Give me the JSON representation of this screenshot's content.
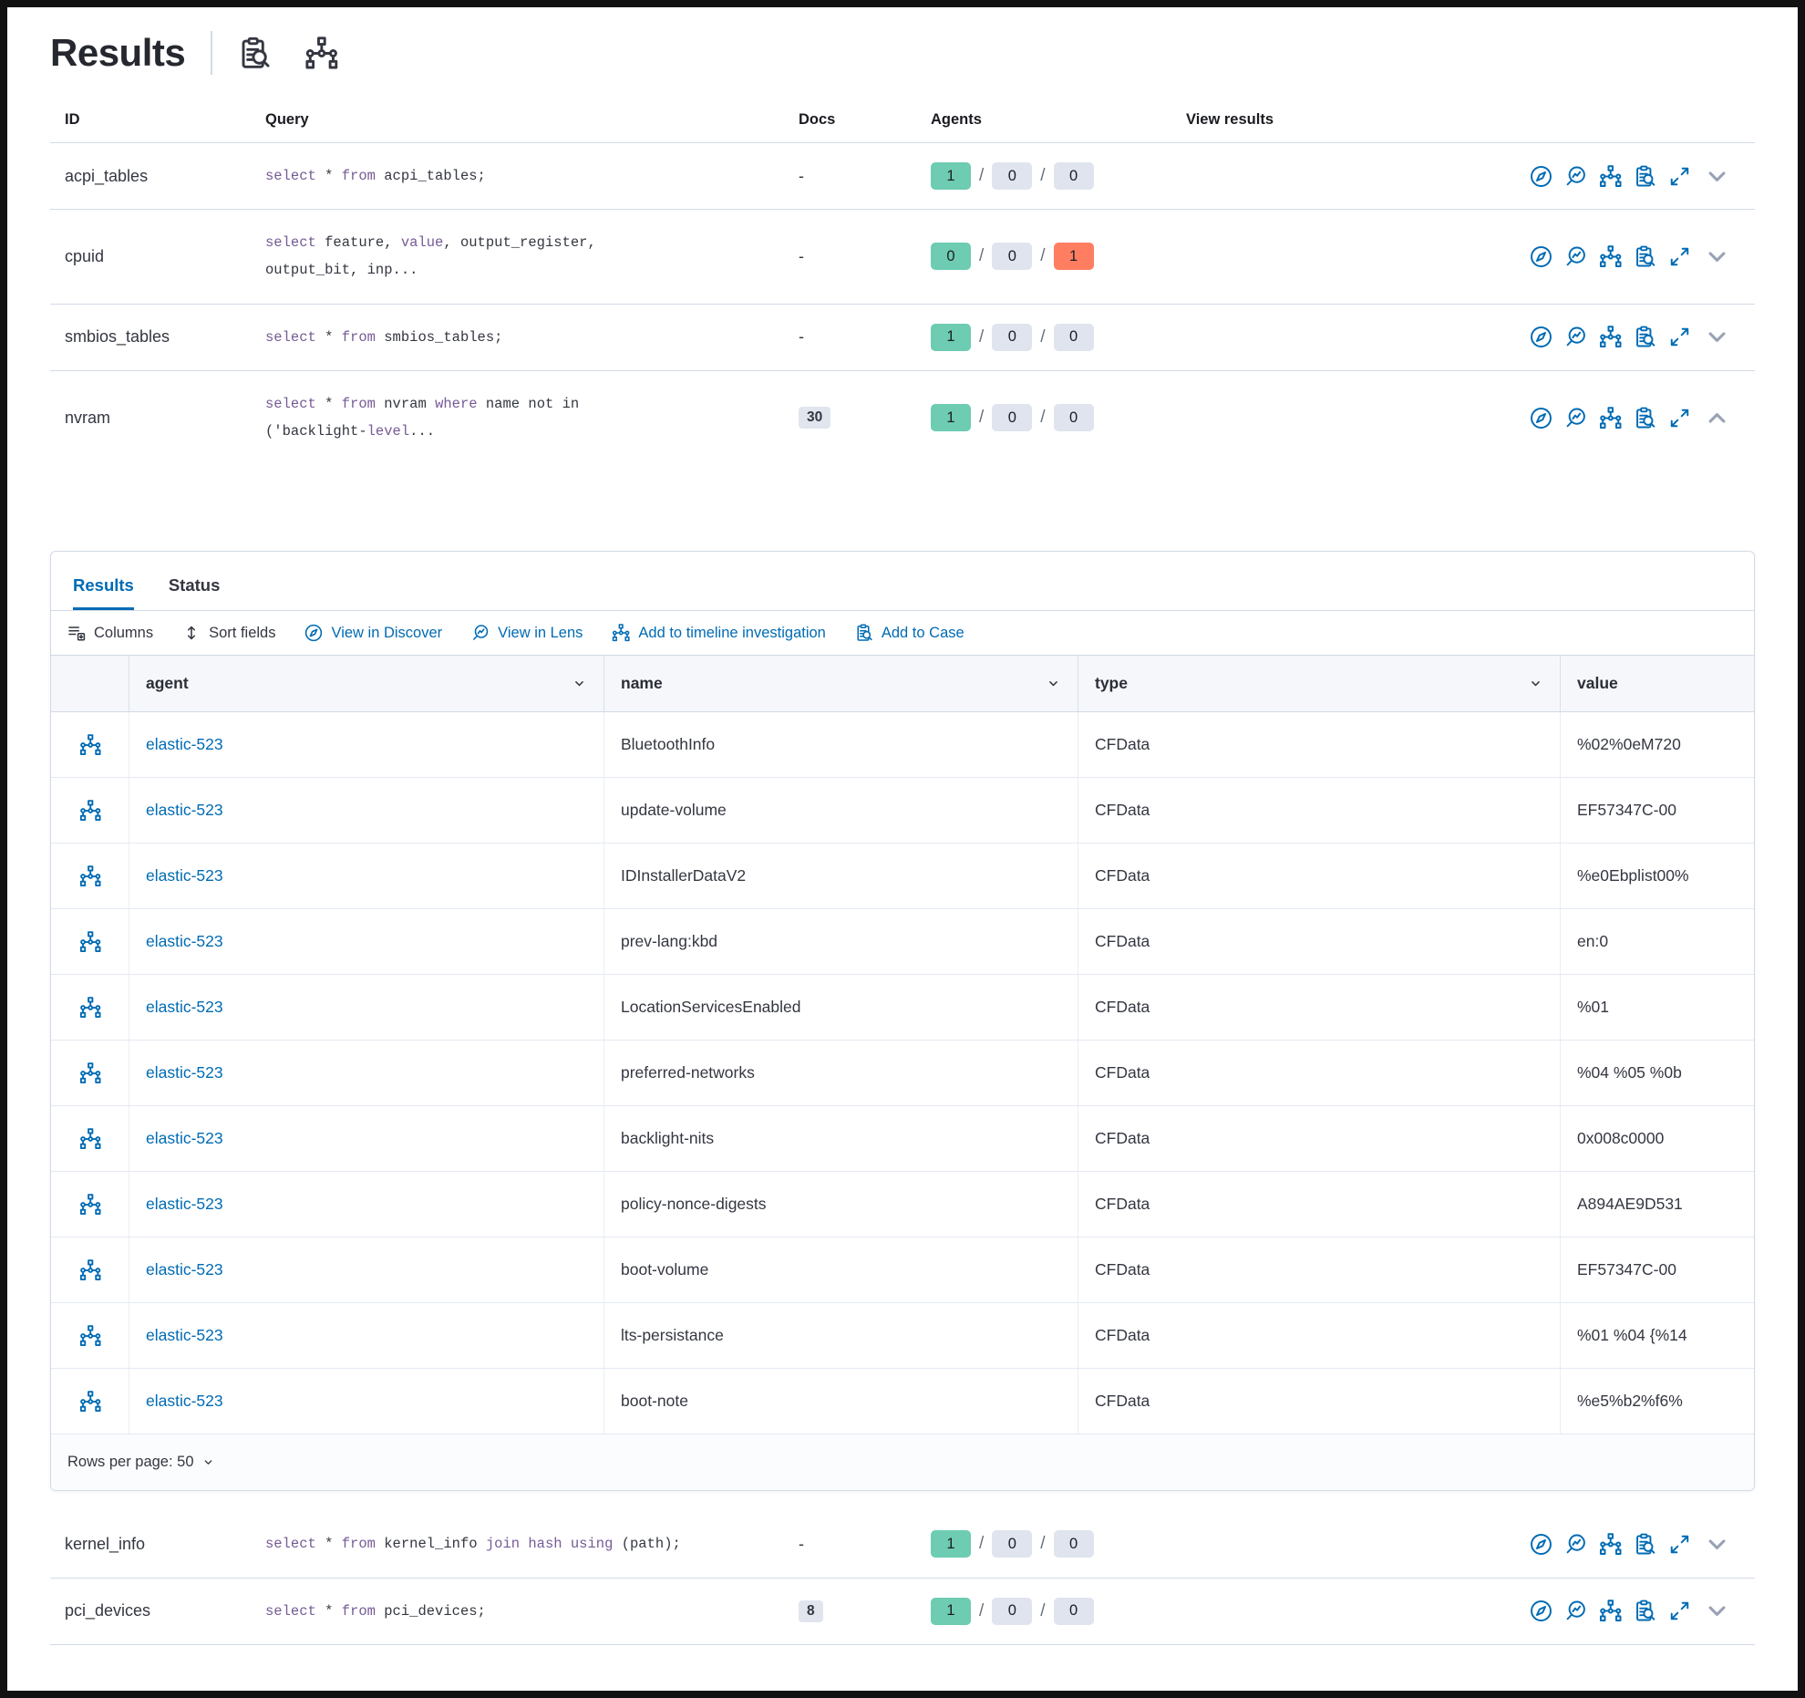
{
  "colors": {
    "accent": "#006bb4",
    "sql_keyword": "#765b96",
    "success_badge": "#6dccb1",
    "danger_badge": "#ff7e62",
    "neutral_badge": "#e0e5ee",
    "border": "#d3dae6",
    "text": "#343741"
  },
  "page": {
    "title": "Results",
    "title_icons": [
      "inspect-icon",
      "timeline-icon"
    ]
  },
  "queries_table": {
    "columns": [
      "ID",
      "Query",
      "Docs",
      "Agents",
      "View results"
    ],
    "view_results_icons": [
      "discover-icon",
      "lens-icon",
      "timeline-icon",
      "case-icon",
      "expand-icon",
      "chevron-icon"
    ],
    "rows_top": [
      {
        "id": "acpi_tables",
        "docs": "-",
        "agents": [
          "1",
          "0",
          "0"
        ],
        "expanded": false,
        "query_lines": [
          [
            [
              "select",
              1
            ],
            [
              " * ",
              0
            ],
            [
              "from",
              1
            ],
            [
              " acpi_tables;",
              0
            ]
          ]
        ]
      },
      {
        "id": "cpuid",
        "docs": "-",
        "agents": [
          "0",
          "0",
          "1"
        ],
        "expanded": false,
        "query_lines": [
          [
            [
              "select",
              1
            ],
            [
              " feature, ",
              0
            ],
            [
              "value",
              1
            ],
            [
              ", output_register,",
              0
            ]
          ],
          [
            [
              "output_bit, inp...",
              0
            ]
          ]
        ]
      },
      {
        "id": "smbios_tables",
        "docs": "-",
        "agents": [
          "1",
          "0",
          "0"
        ],
        "expanded": false,
        "query_lines": [
          [
            [
              "select",
              1
            ],
            [
              " * ",
              0
            ],
            [
              "from",
              1
            ],
            [
              " smbios_tables;",
              0
            ]
          ]
        ]
      },
      {
        "id": "nvram",
        "docs": "30",
        "agents": [
          "1",
          "0",
          "0"
        ],
        "expanded": true,
        "query_lines": [
          [
            [
              "select",
              1
            ],
            [
              " * ",
              0
            ],
            [
              "from",
              1
            ],
            [
              " nvram ",
              0
            ],
            [
              "where",
              1
            ],
            [
              " name not in",
              0
            ]
          ],
          [
            [
              "('backlight-",
              0
            ],
            [
              "level",
              1
            ],
            [
              "...",
              0
            ]
          ]
        ]
      }
    ],
    "rows_bottom": [
      {
        "id": "kernel_info",
        "docs": "-",
        "agents": [
          "1",
          "0",
          "0"
        ],
        "expanded": false,
        "query_lines": [
          [
            [
              "select",
              1
            ],
            [
              " * ",
              0
            ],
            [
              "from",
              1
            ],
            [
              " kernel_info ",
              0
            ],
            [
              "join hash using",
              1
            ],
            [
              " (path);",
              0
            ]
          ]
        ]
      },
      {
        "id": "pci_devices",
        "docs": "8",
        "agents": [
          "1",
          "0",
          "0"
        ],
        "expanded": false,
        "query_lines": [
          [
            [
              "select",
              1
            ],
            [
              " * ",
              0
            ],
            [
              "from",
              1
            ],
            [
              " pci_devices;",
              0
            ]
          ]
        ]
      }
    ]
  },
  "panel": {
    "tabs": [
      {
        "label": "Results",
        "active": true
      },
      {
        "label": "Status",
        "active": false
      }
    ],
    "toolbar": [
      {
        "label": "Columns",
        "icon": "columns-icon",
        "style": "dark"
      },
      {
        "label": "Sort fields",
        "icon": "sort-icon",
        "style": "dark"
      },
      {
        "label": "View in Discover",
        "icon": "discover-icon",
        "style": "blue"
      },
      {
        "label": "View in Lens",
        "icon": "lens-icon",
        "style": "blue"
      },
      {
        "label": "Add to timeline investigation",
        "icon": "timeline-icon",
        "style": "blue"
      },
      {
        "label": "Add to Case",
        "icon": "case-icon",
        "style": "blue"
      }
    ],
    "grid": {
      "columns": [
        {
          "label": "agent",
          "sortable": true
        },
        {
          "label": "name",
          "sortable": true
        },
        {
          "label": "type",
          "sortable": true
        },
        {
          "label": "value",
          "sortable": false
        }
      ],
      "row_icon": "timeline-icon",
      "rows": [
        {
          "agent": "elastic-523",
          "name": "BluetoothInfo",
          "type": "CFData",
          "value": "%02%0eM720"
        },
        {
          "agent": "elastic-523",
          "name": "update-volume",
          "type": "CFData",
          "value": "EF57347C-00"
        },
        {
          "agent": "elastic-523",
          "name": "IDInstallerDataV2",
          "type": "CFData",
          "value": "%e0Ebplist00%"
        },
        {
          "agent": "elastic-523",
          "name": "prev-lang:kbd",
          "type": "CFData",
          "value": "en:0"
        },
        {
          "agent": "elastic-523",
          "name": "LocationServicesEnabled",
          "type": "CFData",
          "value": "%01"
        },
        {
          "agent": "elastic-523",
          "name": "preferred-networks",
          "type": "CFData",
          "value": "%04 %05 %0b"
        },
        {
          "agent": "elastic-523",
          "name": "backlight-nits",
          "type": "CFData",
          "value": "0x008c0000"
        },
        {
          "agent": "elastic-523",
          "name": "policy-nonce-digests",
          "type": "CFData",
          "value": "A894AE9D531"
        },
        {
          "agent": "elastic-523",
          "name": "boot-volume",
          "type": "CFData",
          "value": "EF57347C-00"
        },
        {
          "agent": "elastic-523",
          "name": "lts-persistance",
          "type": "CFData",
          "value": "%01 %04 {%14"
        },
        {
          "agent": "elastic-523",
          "name": "boot-note",
          "type": "CFData",
          "value": "%e5%b2%f6%"
        }
      ],
      "rows_per_page_label": "Rows per page: 50"
    }
  }
}
